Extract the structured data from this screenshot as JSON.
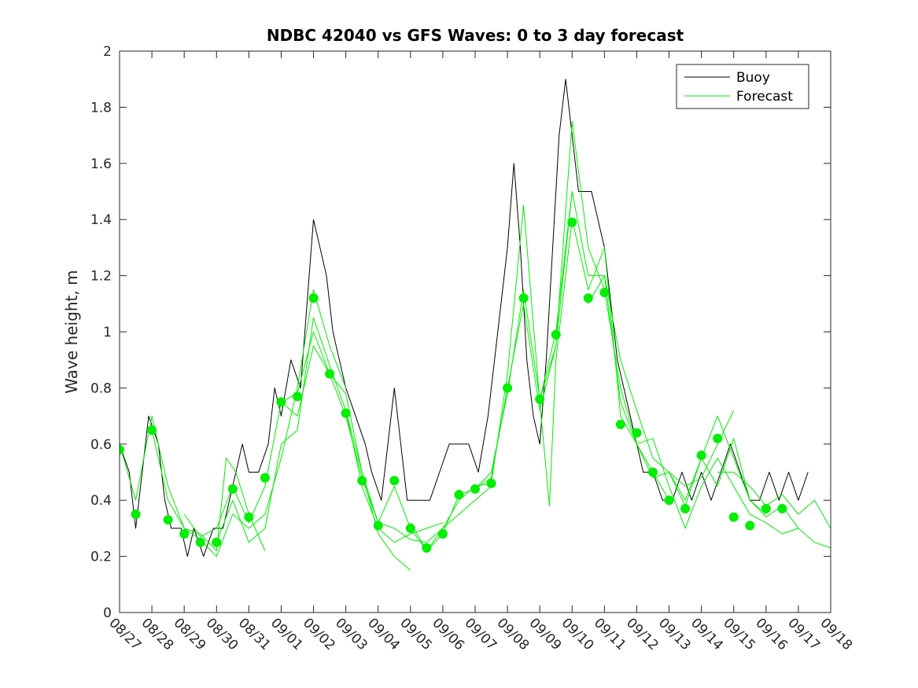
{
  "chart_data": {
    "type": "line",
    "title": "NDBC 42040 vs GFS Waves: 0 to 3 day forecast",
    "xlabel": "",
    "ylabel": "Wave height, m",
    "ylim": [
      0,
      2
    ],
    "yticks": [
      0,
      0.2,
      0.4,
      0.6,
      0.8,
      1,
      1.2,
      1.4,
      1.6,
      1.8,
      2
    ],
    "ytick_labels": [
      "0",
      "0.2",
      "0.4",
      "0.6",
      "0.8",
      "1",
      "1.2",
      "1.4",
      "1.6",
      "1.8",
      "2"
    ],
    "xlim": [
      0,
      22
    ],
    "xtick_labels": [
      "08/27",
      "08/28",
      "08/29",
      "08/30",
      "08/31",
      "09/01",
      "09/02",
      "09/03",
      "09/04",
      "09/05",
      "09/06",
      "09/07",
      "09/08",
      "09/09",
      "09/10",
      "09/11",
      "09/12",
      "09/13",
      "09/14",
      "09/15",
      "09/16",
      "09/17",
      "09/18"
    ],
    "legend": {
      "position": "top-right",
      "entries": [
        "Buoy",
        "Forecast"
      ]
    },
    "colors": {
      "buoy": "#000000",
      "forecast": "#00ee00",
      "axis": "#262626"
    },
    "buoy": {
      "name": "Buoy",
      "points": [
        [
          0,
          0.6
        ],
        [
          0.3,
          0.5
        ],
        [
          0.5,
          0.3
        ],
        [
          0.7,
          0.5
        ],
        [
          0.9,
          0.7
        ],
        [
          1.2,
          0.6
        ],
        [
          1.4,
          0.4
        ],
        [
          1.6,
          0.3
        ],
        [
          1.9,
          0.3
        ],
        [
          2.1,
          0.2
        ],
        [
          2.3,
          0.3
        ],
        [
          2.6,
          0.2
        ],
        [
          2.9,
          0.3
        ],
        [
          3.2,
          0.3
        ],
        [
          3.4,
          0.4
        ],
        [
          3.6,
          0.5
        ],
        [
          3.8,
          0.6
        ],
        [
          4.0,
          0.5
        ],
        [
          4.3,
          0.5
        ],
        [
          4.6,
          0.6
        ],
        [
          4.8,
          0.8
        ],
        [
          5.0,
          0.7
        ],
        [
          5.3,
          0.9
        ],
        [
          5.6,
          0.8
        ],
        [
          5.8,
          1.1
        ],
        [
          6.0,
          1.4
        ],
        [
          6.2,
          1.3
        ],
        [
          6.4,
          1.2
        ],
        [
          6.6,
          1.0
        ],
        [
          6.8,
          0.9
        ],
        [
          7.0,
          0.8
        ],
        [
          7.3,
          0.7
        ],
        [
          7.6,
          0.6
        ],
        [
          7.8,
          0.5
        ],
        [
          8.1,
          0.4
        ],
        [
          8.3,
          0.6
        ],
        [
          8.5,
          0.8
        ],
        [
          8.7,
          0.6
        ],
        [
          8.9,
          0.4
        ],
        [
          9.2,
          0.4
        ],
        [
          9.6,
          0.4
        ],
        [
          9.9,
          0.5
        ],
        [
          10.2,
          0.6
        ],
        [
          10.5,
          0.6
        ],
        [
          10.8,
          0.6
        ],
        [
          11.1,
          0.5
        ],
        [
          11.4,
          0.7
        ],
        [
          11.6,
          0.9
        ],
        [
          11.8,
          1.1
        ],
        [
          12.0,
          1.3
        ],
        [
          12.2,
          1.6
        ],
        [
          12.4,
          1.3
        ],
        [
          12.6,
          0.9
        ],
        [
          12.8,
          0.7
        ],
        [
          13.0,
          0.6
        ],
        [
          13.2,
          0.9
        ],
        [
          13.4,
          1.3
        ],
        [
          13.6,
          1.7
        ],
        [
          13.8,
          1.9
        ],
        [
          14.0,
          1.7
        ],
        [
          14.2,
          1.5
        ],
        [
          14.4,
          1.5
        ],
        [
          14.6,
          1.5
        ],
        [
          14.8,
          1.4
        ],
        [
          15.0,
          1.3
        ],
        [
          15.2,
          1.1
        ],
        [
          15.4,
          0.9
        ],
        [
          15.6,
          0.8
        ],
        [
          15.8,
          0.7
        ],
        [
          16.0,
          0.6
        ],
        [
          16.2,
          0.5
        ],
        [
          16.5,
          0.5
        ],
        [
          16.8,
          0.4
        ],
        [
          17.1,
          0.4
        ],
        [
          17.4,
          0.5
        ],
        [
          17.7,
          0.4
        ],
        [
          18.0,
          0.5
        ],
        [
          18.3,
          0.4
        ],
        [
          18.6,
          0.5
        ],
        [
          18.9,
          0.6
        ],
        [
          19.2,
          0.5
        ],
        [
          19.5,
          0.4
        ],
        [
          19.8,
          0.4
        ],
        [
          20.1,
          0.5
        ],
        [
          20.4,
          0.4
        ],
        [
          20.7,
          0.5
        ],
        [
          21.0,
          0.4
        ],
        [
          21.3,
          0.5
        ]
      ]
    },
    "forecasts": [
      {
        "name": "Forecast",
        "points": [
          [
            0,
            0.6
          ],
          [
            0.5,
            0.4
          ],
          [
            1,
            0.7
          ],
          [
            1.5,
            0.45
          ],
          [
            2,
            0.3
          ],
          [
            2.5,
            0.28
          ],
          [
            3,
            0.22
          ],
          [
            3.3,
            0.55
          ],
          [
            3.6,
            0.5
          ],
          [
            4,
            0.35
          ],
          [
            4.5,
            0.22
          ]
        ]
      },
      {
        "name": "Forecast",
        "points": [
          [
            1,
            0.65
          ],
          [
            1.5,
            0.4
          ],
          [
            2,
            0.3
          ],
          [
            2.5,
            0.26
          ],
          [
            3,
            0.2
          ],
          [
            3.5,
            0.35
          ],
          [
            4,
            0.3
          ],
          [
            4.5,
            0.35
          ],
          [
            5,
            0.55
          ],
          [
            5.5,
            0.8
          ],
          [
            6,
            1.15
          ],
          [
            6.5,
            0.95
          ],
          [
            7,
            0.8
          ]
        ]
      },
      {
        "name": "Forecast",
        "points": [
          [
            2,
            0.35
          ],
          [
            2.5,
            0.27
          ],
          [
            3,
            0.3
          ],
          [
            3.5,
            0.45
          ],
          [
            4,
            0.32
          ],
          [
            4.5,
            0.45
          ],
          [
            5,
            0.75
          ],
          [
            5.5,
            0.78
          ],
          [
            6,
            1.0
          ],
          [
            6.5,
            0.85
          ],
          [
            7,
            0.78
          ],
          [
            7.5,
            0.5
          ],
          [
            8,
            0.28
          ],
          [
            8.5,
            0.2
          ],
          [
            9,
            0.15
          ]
        ]
      },
      {
        "name": "Forecast",
        "points": [
          [
            3,
            0.25
          ],
          [
            3.5,
            0.4
          ],
          [
            4,
            0.25
          ],
          [
            4.5,
            0.3
          ],
          [
            5,
            0.6
          ],
          [
            5.5,
            0.65
          ],
          [
            6,
            1.05
          ],
          [
            6.5,
            0.88
          ],
          [
            7,
            0.72
          ],
          [
            7.5,
            0.45
          ],
          [
            8,
            0.3
          ],
          [
            8.5,
            0.25
          ],
          [
            9,
            0.28
          ],
          [
            9.5,
            0.3
          ],
          [
            10,
            0.32
          ]
        ]
      },
      {
        "name": "Forecast",
        "points": [
          [
            5,
            0.75
          ],
          [
            5.5,
            0.7
          ],
          [
            6,
            0.95
          ],
          [
            6.5,
            0.85
          ],
          [
            7,
            0.7
          ],
          [
            7.5,
            0.48
          ],
          [
            8,
            0.32
          ],
          [
            8.5,
            0.3
          ],
          [
            9,
            0.26
          ],
          [
            9.5,
            0.25
          ],
          [
            10,
            0.3
          ],
          [
            10.5,
            0.35
          ],
          [
            11,
            0.4
          ],
          [
            11.5,
            0.45
          ]
        ]
      },
      {
        "name": "Forecast",
        "points": [
          [
            7,
            0.72
          ],
          [
            7.5,
            0.5
          ],
          [
            8,
            0.32
          ],
          [
            8.5,
            0.45
          ],
          [
            9,
            0.3
          ],
          [
            9.5,
            0.22
          ],
          [
            10,
            0.28
          ],
          [
            10.5,
            0.42
          ],
          [
            11,
            0.44
          ],
          [
            11.5,
            0.48
          ],
          [
            12,
            0.8
          ],
          [
            12.5,
            1.1
          ],
          [
            13,
            0.72
          ],
          [
            13.5,
            0.95
          ],
          [
            14,
            1.5
          ]
        ]
      },
      {
        "name": "Forecast",
        "points": [
          [
            9,
            0.32
          ],
          [
            9.5,
            0.22
          ],
          [
            10,
            0.3
          ],
          [
            10.5,
            0.4
          ],
          [
            11,
            0.45
          ],
          [
            11.5,
            0.46
          ],
          [
            12,
            0.85
          ],
          [
            12.5,
            1.45
          ],
          [
            13,
            0.75
          ],
          [
            13.3,
            0.38
          ],
          [
            13.5,
            0.9
          ],
          [
            14,
            1.4
          ],
          [
            14.5,
            1.15
          ],
          [
            15,
            1.3
          ],
          [
            15.5,
            0.7
          ]
        ]
      },
      {
        "name": "Forecast",
        "points": [
          [
            11,
            0.44
          ],
          [
            11.5,
            0.5
          ],
          [
            12,
            0.78
          ],
          [
            12.5,
            1.15
          ],
          [
            13,
            0.76
          ],
          [
            13.5,
            0.95
          ],
          [
            14,
            1.75
          ],
          [
            14.5,
            1.3
          ],
          [
            15,
            1.15
          ],
          [
            15.5,
            0.8
          ],
          [
            16,
            0.6
          ],
          [
            16.5,
            0.5
          ],
          [
            17,
            0.4
          ]
        ]
      },
      {
        "name": "Forecast",
        "points": [
          [
            13,
            0.76
          ],
          [
            13.5,
            1.0
          ],
          [
            14,
            1.5
          ],
          [
            14.5,
            1.2
          ],
          [
            15,
            1.2
          ],
          [
            15.5,
            0.75
          ],
          [
            16,
            0.6
          ],
          [
            16.5,
            0.48
          ],
          [
            17,
            0.5
          ],
          [
            17.5,
            0.45
          ],
          [
            18,
            0.48
          ],
          [
            18.5,
            0.6
          ],
          [
            19,
            0.72
          ]
        ]
      },
      {
        "name": "Forecast",
        "points": [
          [
            14.5,
            1.1
          ],
          [
            15,
            1.2
          ],
          [
            15.5,
            0.9
          ],
          [
            16,
            0.72
          ],
          [
            16.5,
            0.55
          ],
          [
            17,
            0.5
          ],
          [
            17.5,
            0.4
          ],
          [
            18,
            0.55
          ],
          [
            18.5,
            0.7
          ],
          [
            19,
            0.55
          ],
          [
            19.5,
            0.4
          ],
          [
            20,
            0.35
          ]
        ]
      },
      {
        "name": "Forecast",
        "points": [
          [
            15.5,
            0.7
          ],
          [
            16,
            0.6
          ],
          [
            16.5,
            0.62
          ],
          [
            17,
            0.45
          ],
          [
            17.5,
            0.3
          ],
          [
            18,
            0.45
          ],
          [
            18.5,
            0.55
          ],
          [
            19,
            0.45
          ],
          [
            19.5,
            0.35
          ],
          [
            20,
            0.32
          ],
          [
            20.5,
            0.28
          ],
          [
            21,
            0.3
          ]
        ]
      },
      {
        "name": "Forecast",
        "points": [
          [
            17,
            0.5
          ],
          [
            17.5,
            0.38
          ],
          [
            18,
            0.55
          ],
          [
            18.5,
            0.45
          ],
          [
            19,
            0.62
          ],
          [
            19.5,
            0.4
          ],
          [
            20,
            0.34
          ],
          [
            20.5,
            0.38
          ],
          [
            21,
            0.3
          ],
          [
            21.5,
            0.25
          ],
          [
            22,
            0.23
          ]
        ]
      },
      {
        "name": "Forecast",
        "points": [
          [
            18.5,
            0.5
          ],
          [
            19,
            0.5
          ],
          [
            19.5,
            0.45
          ],
          [
            20,
            0.38
          ],
          [
            20.5,
            0.42
          ],
          [
            21,
            0.35
          ],
          [
            21.5,
            0.4
          ],
          [
            22,
            0.3
          ]
        ]
      }
    ],
    "markers": [
      [
        0,
        0.58
      ],
      [
        0.5,
        0.35
      ],
      [
        1,
        0.65
      ],
      [
        1.5,
        0.33
      ],
      [
        2,
        0.28
      ],
      [
        2.5,
        0.25
      ],
      [
        3,
        0.25
      ],
      [
        3.5,
        0.44
      ],
      [
        4,
        0.34
      ],
      [
        4.5,
        0.48
      ],
      [
        5,
        0.75
      ],
      [
        5.5,
        0.77
      ],
      [
        6,
        1.12
      ],
      [
        6.5,
        0.85
      ],
      [
        7,
        0.71
      ],
      [
        7.5,
        0.47
      ],
      [
        8,
        0.31
      ],
      [
        8.5,
        0.47
      ],
      [
        9,
        0.3
      ],
      [
        9.5,
        0.23
      ],
      [
        10,
        0.28
      ],
      [
        10.5,
        0.42
      ],
      [
        11,
        0.44
      ],
      [
        11.5,
        0.46
      ],
      [
        12,
        0.8
      ],
      [
        12.5,
        1.12
      ],
      [
        13,
        0.76
      ],
      [
        13.5,
        0.99
      ],
      [
        14,
        1.39
      ],
      [
        14.5,
        1.12
      ],
      [
        15,
        1.14
      ],
      [
        15.5,
        0.67
      ],
      [
        16,
        0.64
      ],
      [
        16.5,
        0.5
      ],
      [
        17,
        0.4
      ],
      [
        17.5,
        0.37
      ],
      [
        18,
        0.56
      ],
      [
        18.5,
        0.62
      ],
      [
        19,
        0.34
      ],
      [
        19.5,
        0.31
      ],
      [
        20,
        0.37
      ],
      [
        20.5,
        0.37
      ]
    ]
  }
}
